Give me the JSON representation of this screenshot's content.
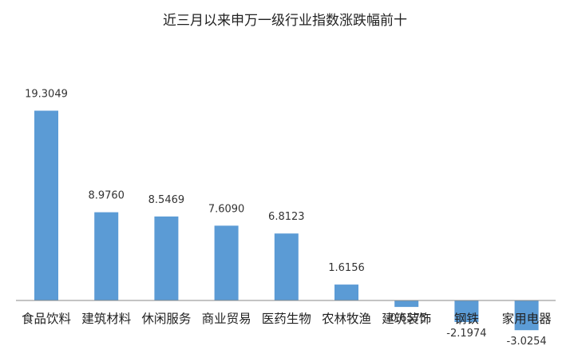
{
  "chart_data": {
    "type": "bar",
    "title": "近三月以来申万一级行业指数涨跌幅前十",
    "xlabel": "",
    "ylabel": "",
    "categories": [
      "食品饮料",
      "建筑材料",
      "休闲服务",
      "商业贸易",
      "医药生物",
      "农林牧渔",
      "建筑装饰",
      "钢铁",
      "家用电器"
    ],
    "series": [
      {
        "values": [
          19.3049,
          8.976,
          8.5469,
          7.609,
          6.8123,
          1.6156,
          -0.6575,
          -2.1974,
          -3.0254
        ],
        "labels": [
          "19.3049",
          "8.9760",
          "8.5469",
          "7.6090",
          "6.8123",
          "1.6156",
          "-0.6575",
          "-2.1974",
          "-3.0254"
        ]
      }
    ],
    "ylim": [
      -3.5,
      20.5
    ],
    "grid": false,
    "legend": "none",
    "colors": {
      "bar": "#5B9BD5",
      "axis": "#888888"
    }
  }
}
